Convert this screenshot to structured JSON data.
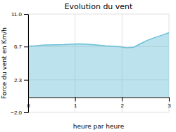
{
  "chart_data": {
    "type": "area",
    "title": "Evolution du vent",
    "x_label": "heure par heure",
    "y_label": "Force du vent en Km/h",
    "x": [
      0.0,
      0.15,
      0.3,
      0.45,
      0.6,
      0.75,
      0.9,
      1.05,
      1.2,
      1.35,
      1.5,
      1.65,
      1.8,
      1.95,
      2.1,
      2.25,
      2.4,
      2.55,
      2.7,
      2.85,
      3.0
    ],
    "values": [
      6.75,
      6.8,
      6.88,
      6.92,
      6.93,
      6.95,
      7.0,
      7.05,
      7.02,
      6.95,
      6.88,
      6.8,
      6.75,
      6.68,
      6.55,
      6.62,
      7.1,
      7.55,
      7.9,
      8.2,
      8.55
    ],
    "color": "#6bbfd8",
    "xlim": [
      0,
      3
    ],
    "ylim": [
      -2.0,
      11.0
    ],
    "xticks": [
      0,
      1,
      2,
      3
    ],
    "yticks": [
      {
        "value": -2.0,
        "label": "−2.0"
      },
      2.3,
      6.7,
      {
        "value": 11.0,
        "label": "11.0"
      }
    ],
    "grid": true
  }
}
